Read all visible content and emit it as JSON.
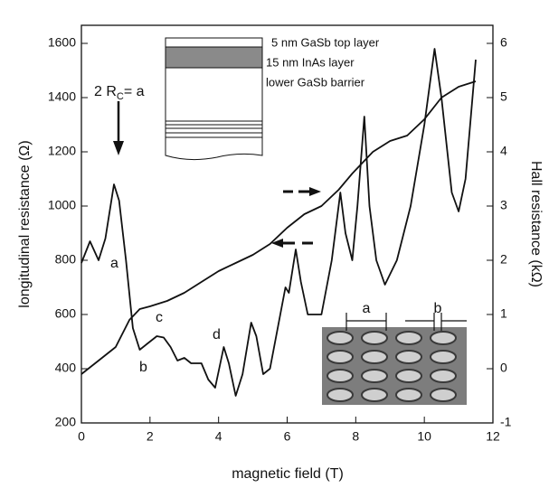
{
  "chart_data": {
    "type": "line",
    "xlabel": "magnetic field (T)",
    "ylabel": "longitudinal resistance (Ω)",
    "y2label": "Hall resistance (kΩ)",
    "xlim": [
      0,
      12
    ],
    "xticks": [
      0,
      2,
      4,
      6,
      8,
      10,
      12
    ],
    "ylim": [
      200,
      1600
    ],
    "yticks": [
      200,
      400,
      600,
      800,
      1000,
      1200,
      1400,
      1600
    ],
    "y2lim": [
      -1,
      6
    ],
    "y2ticks": [
      -1,
      0,
      1,
      2,
      3,
      4,
      5,
      6
    ],
    "series": [
      {
        "color": "#111111",
        "axis": "y",
        "x": [
          0,
          0.25,
          0.5,
          0.7,
          0.95,
          1.1,
          1.3,
          1.5,
          1.7,
          1.9,
          2.2,
          2.4,
          2.6,
          2.8,
          3.0,
          3.2,
          3.5,
          3.7,
          3.9,
          4.05,
          4.15,
          4.3,
          4.5,
          4.7,
          4.95,
          5.1,
          5.3,
          5.5,
          5.8,
          5.95,
          6.05,
          6.25,
          6.4,
          6.6,
          7.0,
          7.3,
          7.55,
          7.7,
          7.9,
          8.05,
          8.25,
          8.4,
          8.6,
          8.85,
          9.2,
          9.6,
          10.0,
          10.3,
          10.5,
          10.8,
          11.0,
          11.2,
          11.5
        ],
        "values": [
          790,
          870,
          800,
          880,
          1080,
          1020,
          800,
          550,
          470,
          490,
          520,
          515,
          480,
          430,
          440,
          420,
          420,
          360,
          330,
          420,
          480,
          420,
          300,
          380,
          570,
          520,
          380,
          400,
          600,
          700,
          680,
          840,
          720,
          600,
          600,
          800,
          1050,
          900,
          800,
          1000,
          1330,
          1000,
          800,
          710,
          800,
          1000,
          1300,
          1580,
          1400,
          1050,
          980,
          1100,
          1540
        ]
      },
      {
        "color": "#111111",
        "axis": "y2",
        "x": [
          0,
          0.5,
          1,
          1.4,
          1.7,
          2,
          2.5,
          3,
          3.5,
          4,
          4.5,
          5,
          5.5,
          6,
          6.5,
          7,
          7.5,
          7.9,
          8.2,
          8.5,
          9,
          9.5,
          10,
          10.5,
          11,
          11.5
        ],
        "values": [
          -0.1,
          0.15,
          0.4,
          0.9,
          1.1,
          1.15,
          1.25,
          1.4,
          1.6,
          1.8,
          1.95,
          2.1,
          2.3,
          2.6,
          2.85,
          3.0,
          3.3,
          3.6,
          3.8,
          4.0,
          4.2,
          4.3,
          4.6,
          5.0,
          5.2,
          5.3
        ]
      }
    ],
    "annotations": {
      "rc": {
        "main": "2 R",
        "sub": "C",
        "rest": "= a"
      },
      "a": "a",
      "b": "b",
      "c": "c",
      "d": "d",
      "layer1": "5 nm GaSb top layer",
      "layer2": "15 nm InAs layer",
      "layer3": "lower GaSb barrier",
      "img_a": "a",
      "img_b": "b"
    }
  }
}
